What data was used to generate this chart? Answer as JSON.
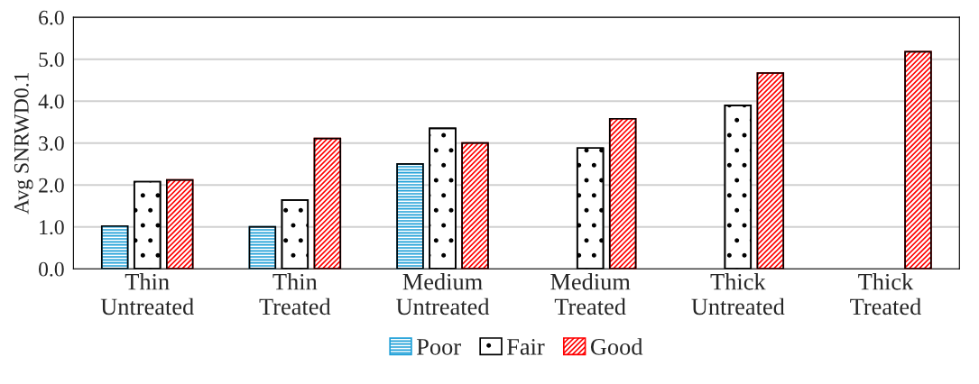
{
  "chart_data": {
    "type": "bar",
    "ylabel": "Avg SNRWD0.1",
    "categories": [
      "Thin\nUntreated",
      "Thin\nTreated",
      "Medium\nUntreated",
      "Medium\nTreated",
      "Thick\nUntreated",
      "Thick\nTreated"
    ],
    "series": [
      {
        "name": "Poor",
        "color": "#1fa0d8",
        "values": [
          1.02,
          1.0,
          2.5,
          null,
          null,
          null
        ]
      },
      {
        "name": "Fair",
        "color": "#000000",
        "values": [
          2.08,
          1.64,
          3.35,
          2.88,
          3.9,
          null
        ]
      },
      {
        "name": "Good",
        "color": "#ff0000",
        "values": [
          2.12,
          3.11,
          3.0,
          3.58,
          4.67,
          5.18
        ]
      }
    ],
    "ylim": [
      0,
      6
    ],
    "yticks": [
      {
        "value": 0,
        "label": "0.0"
      },
      {
        "value": 1,
        "label": "1.0"
      },
      {
        "value": 2,
        "label": "2.0"
      },
      {
        "value": 3,
        "label": "3.0"
      },
      {
        "value": 4,
        "label": "4.0"
      },
      {
        "value": 5,
        "label": "5.0"
      },
      {
        "value": 6,
        "label": "6.0"
      }
    ],
    "grid": "y",
    "legend": "bottom"
  }
}
